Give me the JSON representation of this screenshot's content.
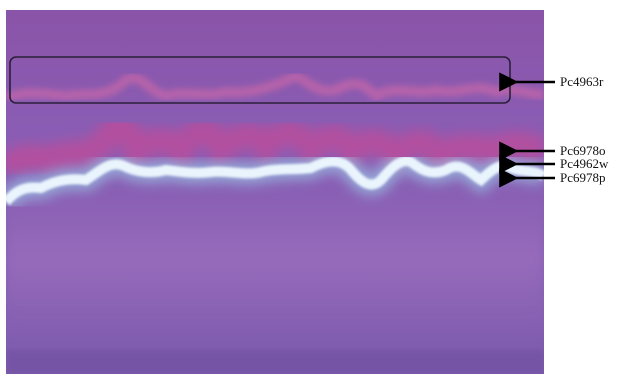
{
  "figure": {
    "description_free": true,
    "colors": {
      "background_purple": "#8a5fb0",
      "band_magenta": "#d4458f",
      "band_white": "#e8f6ff",
      "band_cyan": "#9fe1f2",
      "box_outline": "#2a1f38",
      "arrow": "#000000"
    },
    "labels": [
      {
        "id": "upper",
        "text": "Pc4963r"
      },
      {
        "id": "mid1",
        "text": "Pc6978o"
      },
      {
        "id": "mid2",
        "text": "Pc4962w"
      },
      {
        "id": "mid3",
        "text": "Pc6978p"
      }
    ]
  }
}
